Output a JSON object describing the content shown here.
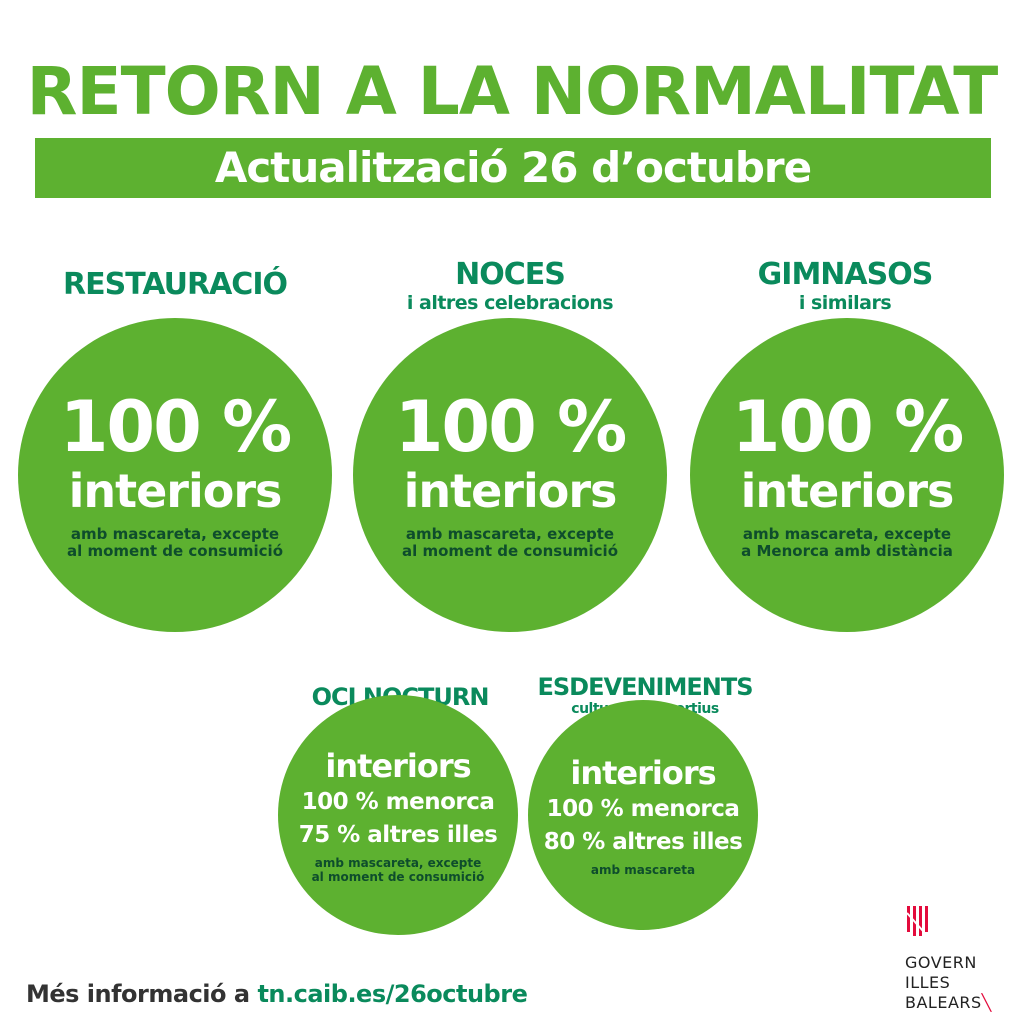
{
  "title": "RETORN A LA NORMALITAT",
  "subtitle": "Actualització 26 d’octubre",
  "colors": {
    "green": "#5db130",
    "teal": "#0a8a5c",
    "dark_green": "#0e4d2c",
    "logo_red": "#e30b3c"
  },
  "sectors": [
    {
      "heading": "RESTAURACIÓ",
      "subheading": "",
      "percent": "100 %",
      "scope": "interiors",
      "note1": "amb mascareta, excepte",
      "note2": "al moment de consumició"
    },
    {
      "heading": "NOCES",
      "subheading": "i altres celebracions",
      "percent": "100 %",
      "scope": "interiors",
      "note1": "amb mascareta, excepte",
      "note2": "al moment de consumició"
    },
    {
      "heading": "GIMNASOS",
      "subheading": "i similars",
      "percent": "100 %",
      "scope": "interiors",
      "note1": "amb mascareta, excepte",
      "note2": "a Menorca amb distància"
    },
    {
      "heading": "OCI NOCTURN",
      "subheading": "",
      "scope": "interiors",
      "line1": "100 % menorca",
      "line2": "75 % altres illes",
      "note1": "amb mascareta, excepte",
      "note2": "al moment de consumició"
    },
    {
      "heading": "ESDEVENIMENTS",
      "subheading": "culturals i esportius",
      "scope": "interiors",
      "line1": "100 % menorca",
      "line2": "80 % altres illes",
      "note1": "amb mascareta"
    }
  ],
  "footer": {
    "text": "Més informació a ",
    "link": "tn.caib.es/26octubre"
  },
  "logo": {
    "line1": "GOVERN",
    "line2": "ILLES",
    "line3": "BALEARS"
  }
}
